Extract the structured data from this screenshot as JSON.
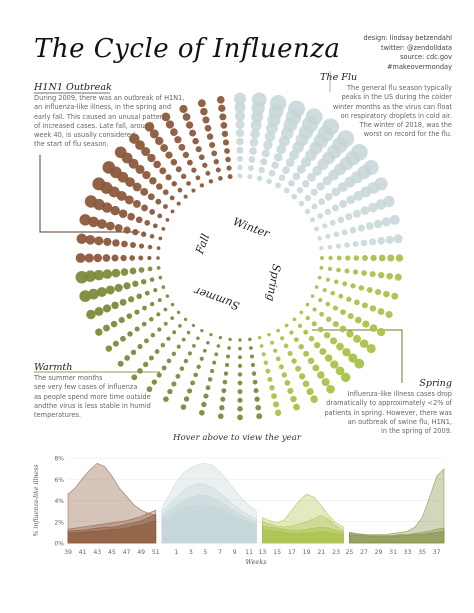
{
  "header": {
    "title": "The Cycle of Influenza",
    "credits": [
      "design: lindsay betzendahl",
      "twitter: @zendolldata",
      "source: cdc.gov",
      "#makeovermonday"
    ]
  },
  "sections": {
    "h1n1": {
      "heading": "H1N1 Outbreak",
      "text": [
        "During 2009, there was an outbreak of H1N1,",
        "an influenza-like illness, in the spring and",
        "early fall. This caused an unusal pattern",
        "of increased cases. Late fall, around",
        "week 40, is usually considered",
        "the start of flu season."
      ]
    },
    "flu": {
      "heading": "The Flu",
      "text": [
        "The general flu season typically",
        "peaks in the US during the colder",
        "winter months as the virus can float",
        "on respiratory droplets in cold air.",
        "The winter of 2018, was the",
        "worst on record for the flu."
      ]
    },
    "warmth": {
      "heading": "Warmth",
      "text": [
        "The summer months",
        "see very few cases of influenza",
        "as people spend more time outside",
        "andthe virus is less stable in humid",
        "temperatures."
      ]
    },
    "spring": {
      "heading": "Spring",
      "text": [
        "Influenza-like illness cases drop",
        "dramatically to approximately <2% of",
        "patients in spring. However, there was",
        "an outbreak of swine flu, H1N1,",
        "in the spring of 2009."
      ]
    }
  },
  "radial": {
    "season_labels": [
      "Winter",
      "Spring",
      "Summer",
      "Fall"
    ],
    "colors": {
      "fall": "#8b5a3c",
      "winter": "#c5d6d8",
      "spring": "#a9c24a",
      "summer": "#7d8a3c",
      "outline": "#ffffff"
    },
    "rings": 10
  },
  "hover_text": "Hover above to view the year",
  "chart_data": {
    "type": "area",
    "title": "",
    "xlabel": "Weeks",
    "ylabel": "% influenza-like illness",
    "y_ticks": [
      "8%",
      "6%",
      "4%",
      "2%",
      "0%"
    ],
    "ylim": [
      0,
      8
    ],
    "x_ticks": [
      "39",
      "41",
      "43",
      "45",
      "47",
      "49",
      "51",
      "1",
      "3",
      "5",
      "7",
      "9",
      "11",
      "13",
      "15",
      "17",
      "19",
      "21",
      "23",
      "25",
      "27",
      "29",
      "31",
      "33",
      "35",
      "37"
    ],
    "panels": [
      {
        "season": "fall",
        "weeks": [
          39,
          40,
          41,
          42,
          43,
          44,
          45,
          46,
          47,
          48,
          49,
          50,
          51
        ],
        "color": "#8b5a3c",
        "series": [
          {
            "values": [
              4.6,
              5.2,
              6.1,
              6.9,
              7.5,
              7.2,
              6.3,
              5.2,
              4.4,
              3.6,
              3.1,
              2.8,
              2.6
            ]
          },
          {
            "values": [
              1.3,
              1.4,
              1.5,
              1.6,
              1.7,
              1.8,
              1.9,
              2.0,
              2.1,
              2.3,
              2.5,
              2.8,
              3.1
            ]
          },
          {
            "values": [
              1.1,
              1.2,
              1.2,
              1.3,
              1.4,
              1.5,
              1.5,
              1.6,
              1.8,
              1.9,
              2.1,
              2.4,
              2.7
            ]
          },
          {
            "values": [
              0.9,
              1.0,
              1.0,
              1.1,
              1.1,
              1.2,
              1.3,
              1.3,
              1.4,
              1.6,
              1.7,
              1.9,
              2.1
            ]
          }
        ]
      },
      {
        "season": "winter",
        "weeks": [
          51,
          52,
          1,
          2,
          3,
          4,
          5,
          6,
          7,
          8,
          9,
          10,
          11,
          12
        ],
        "color": "#c5d6d8",
        "series": [
          {
            "values": [
              3.3,
              4.5,
              5.8,
              6.6,
              7.1,
              7.4,
              7.5,
              7.3,
              6.7,
              5.9,
              5.0,
              4.2,
              3.5,
              3.0
            ]
          },
          {
            "values": [
              3.0,
              3.6,
              4.3,
              4.9,
              5.4,
              5.6,
              5.5,
              5.2,
              4.7,
              4.1,
              3.5,
              3.0,
              2.6,
              2.3
            ]
          },
          {
            "values": [
              2.6,
              3.1,
              3.6,
              4.0,
              4.3,
              4.5,
              4.5,
              4.3,
              3.9,
              3.5,
              3.0,
              2.6,
              2.3,
              2.0
            ]
          },
          {
            "values": [
              2.3,
              2.6,
              3.0,
              3.3,
              3.5,
              3.6,
              3.6,
              3.4,
              3.2,
              2.9,
              2.6,
              2.3,
              2.0,
              1.8
            ]
          },
          {
            "values": [
              2.0,
              2.2,
              2.5,
              2.7,
              2.9,
              3.0,
              3.0,
              2.9,
              2.7,
              2.5,
              2.2,
              2.0,
              1.8,
              1.6
            ]
          }
        ]
      },
      {
        "season": "spring",
        "weeks": [
          13,
          14,
          15,
          16,
          17,
          18,
          19,
          20,
          21,
          22,
          23,
          24
        ],
        "color": "#a9c24a",
        "series": [
          {
            "values": [
              2.4,
              2.1,
              1.9,
              2.2,
              3.1,
              4.0,
              4.6,
              4.3,
              3.5,
              2.6,
              1.9,
              1.5
            ]
          },
          {
            "values": [
              2.0,
              1.8,
              1.6,
              1.5,
              1.6,
              1.8,
              2.0,
              2.3,
              2.6,
              2.2,
              1.6,
              1.2
            ]
          },
          {
            "values": [
              1.6,
              1.5,
              1.4,
              1.3,
              1.2,
              1.2,
              1.3,
              1.4,
              1.5,
              1.4,
              1.2,
              1.0
            ]
          },
          {
            "values": [
              1.3,
              1.2,
              1.1,
              1.0,
              0.9,
              0.9,
              1.0,
              1.0,
              1.1,
              1.0,
              0.9,
              0.8
            ]
          }
        ]
      },
      {
        "season": "summer",
        "weeks": [
          25,
          26,
          27,
          28,
          29,
          30,
          31,
          32,
          33,
          34,
          35,
          36,
          37,
          38
        ],
        "color": "#7d8a3c",
        "series": [
          {
            "values": [
              1.0,
              0.9,
              0.8,
              0.8,
              0.8,
              0.8,
              0.9,
              1.0,
              1.1,
              1.5,
              2.4,
              4.3,
              6.3,
              7.0
            ]
          },
          {
            "values": [
              0.9,
              0.8,
              0.8,
              0.7,
              0.7,
              0.7,
              0.7,
              0.8,
              0.8,
              0.9,
              1.0,
              1.1,
              1.3,
              1.4
            ]
          },
          {
            "values": [
              0.8,
              0.7,
              0.7,
              0.6,
              0.6,
              0.6,
              0.6,
              0.7,
              0.7,
              0.8,
              0.8,
              0.9,
              1.0,
              1.1
            ]
          }
        ]
      }
    ]
  }
}
